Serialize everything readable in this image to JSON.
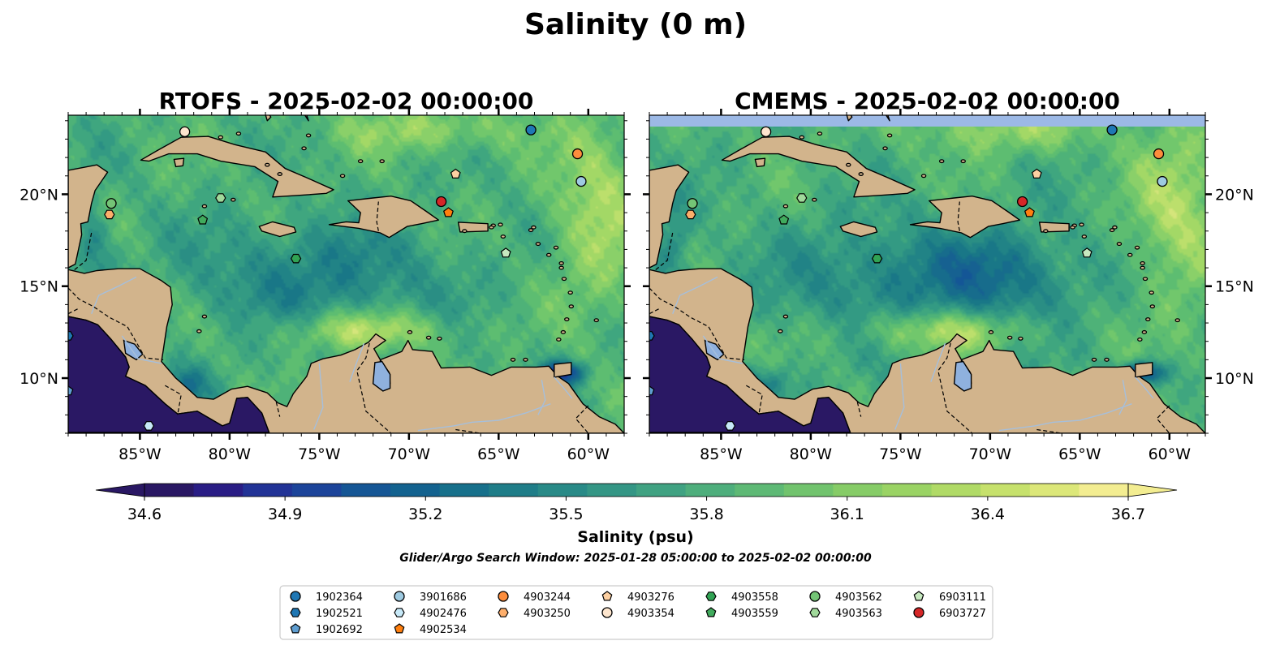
{
  "figure": {
    "title": "Salinity (0 m)"
  },
  "panels": [
    {
      "id": "rtofs",
      "title": "RTOFS - 2025-02-02 00:00:00",
      "band_color": ""
    },
    {
      "id": "cmems",
      "title": "CMEMS - 2025-02-02 00:00:00",
      "band_color": "#9cb9e6"
    }
  ],
  "map_extent": {
    "lon_min": -89,
    "lon_max": -58,
    "lat_min": 7,
    "lat_max": 24.3
  },
  "axes": {
    "x_ticks": [
      {
        "lon": -85,
        "label": "85°W"
      },
      {
        "lon": -80,
        "label": "80°W"
      },
      {
        "lon": -75,
        "label": "75°W"
      },
      {
        "lon": -70,
        "label": "70°W"
      },
      {
        "lon": -65,
        "label": "65°W"
      },
      {
        "lon": -60,
        "label": "60°W"
      }
    ],
    "y_ticks": [
      {
        "lat": 20,
        "label": "20°N"
      },
      {
        "lat": 15,
        "label": "15°N"
      },
      {
        "lat": 10,
        "label": "10°N"
      }
    ]
  },
  "colorbar": {
    "label": "Salinity (psu)",
    "min": 34.6,
    "max": 36.7,
    "levels": 23,
    "ticks": [
      "34.6",
      "34.9",
      "35.2",
      "35.5",
      "35.8",
      "36.1",
      "36.4",
      "36.7"
    ],
    "extend": "both",
    "colormap": "haline",
    "colors": [
      "#2a1864",
      "#2a1d85",
      "#223396",
      "#1c449a",
      "#155695",
      "#13628f",
      "#17708b",
      "#1f7d88",
      "#298a87",
      "#349685",
      "#40a282",
      "#4eae7c",
      "#5eb975",
      "#71c36d",
      "#86cc67",
      "#9ad364",
      "#b0da66",
      "#c6e16c",
      "#dce779",
      "#f3ed91"
    ]
  },
  "search_window": "Glider/Argo Search Window: 2025-01-28 05:00:00 to 2025-02-02 00:00:00",
  "colors": {
    "land": "#d2b48c",
    "lake": "#8fb1de",
    "ocean_pacific": "#2a1864"
  },
  "floats": [
    {
      "id": "1902364",
      "marker": "circle",
      "color": "#1f77b4",
      "lon": -63.2,
      "lat": 23.5
    },
    {
      "id": "1902521",
      "marker": "hexagon",
      "color": "#1f77b4",
      "lon": -89.0,
      "lat": 12.3
    },
    {
      "id": "1902692",
      "marker": "pentagon",
      "color": "#5f9ed1",
      "lon": -89.0,
      "lat": 9.3
    },
    {
      "id": "3901686",
      "marker": "circle",
      "color": "#9ecae1",
      "lon": -60.4,
      "lat": 20.7
    },
    {
      "id": "4902476",
      "marker": "hexagon",
      "color": "#c7e9f8",
      "lon": -84.5,
      "lat": 7.4
    },
    {
      "id": "4902534",
      "marker": "pentagon",
      "color": "#ff7f0e",
      "lon": -67.8,
      "lat": 19.0
    },
    {
      "id": "4903244",
      "marker": "circle",
      "color": "#fd8d3c",
      "lon": -60.6,
      "lat": 22.2
    },
    {
      "id": "4903250",
      "marker": "hexagon",
      "color": "#fdae6b",
      "lon": -86.7,
      "lat": 18.9
    },
    {
      "id": "4903276",
      "marker": "pentagon",
      "color": "#fdd0a2",
      "lon": -67.4,
      "lat": 21.1
    },
    {
      "id": "4903354",
      "marker": "circle",
      "color": "#fee6ce",
      "lon": -82.5,
      "lat": 23.4
    },
    {
      "id": "4903558",
      "marker": "hexagon",
      "color": "#31a354",
      "lon": -76.3,
      "lat": 16.5
    },
    {
      "id": "4903559",
      "marker": "pentagon",
      "color": "#41ab5d",
      "lon": -81.5,
      "lat": 18.6
    },
    {
      "id": "4903562",
      "marker": "circle",
      "color": "#74c476",
      "lon": -86.6,
      "lat": 19.5
    },
    {
      "id": "4903563",
      "marker": "hexagon",
      "color": "#a1d99b",
      "lon": -80.5,
      "lat": 19.8
    },
    {
      "id": "6903111",
      "marker": "pentagon",
      "color": "#c7e9c0",
      "lon": -64.6,
      "lat": 16.8
    },
    {
      "id": "6903727",
      "marker": "circle",
      "color": "#d62728",
      "lon": -68.2,
      "lat": 19.6
    }
  ],
  "legend_order": [
    [
      "1902364",
      "1902521",
      "1902692"
    ],
    [
      "3901686",
      "4902476",
      "4902534"
    ],
    [
      "4903244",
      "4903250"
    ],
    [
      "4903276",
      "4903354"
    ],
    [
      "4903558",
      "4903559"
    ],
    [
      "4903562",
      "4903563"
    ],
    [
      "6903111",
      "6903727"
    ]
  ]
}
